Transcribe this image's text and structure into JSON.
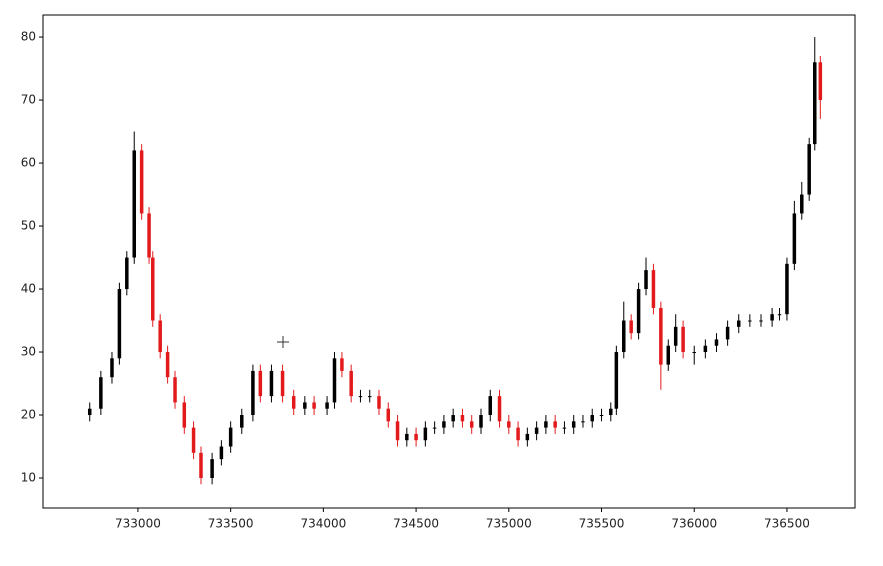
{
  "chart_data": {
    "type": "candlestick",
    "x": [
      732740,
      732800,
      732860,
      732900,
      732940,
      732980,
      733020,
      733060,
      733080,
      733120,
      733160,
      733200,
      733250,
      733300,
      733340,
      733400,
      733450,
      733500,
      733560,
      733620,
      733660,
      733720,
      733780,
      733840,
      733900,
      733950,
      734020,
      734060,
      734100,
      734150,
      734200,
      734250,
      734300,
      734350,
      734400,
      734450,
      734500,
      734550,
      734600,
      734650,
      734700,
      734750,
      734800,
      734850,
      734900,
      734950,
      735000,
      735050,
      735100,
      735150,
      735200,
      735250,
      735300,
      735350,
      735400,
      735450,
      735500,
      735550,
      735580,
      735620,
      735660,
      735700,
      735740,
      735780,
      735820,
      735860,
      735900,
      735940,
      736000,
      736060,
      736120,
      736180,
      736240,
      736300,
      736360,
      736420,
      736460,
      736500,
      736540,
      736580,
      736620,
      736650,
      736680
    ],
    "open": [
      20,
      21,
      26,
      29,
      40,
      45,
      62,
      52,
      45,
      35,
      30,
      26,
      22,
      18,
      14,
      10,
      13,
      15,
      18,
      20,
      27,
      23,
      27,
      23,
      21,
      22,
      21,
      22,
      29,
      27,
      23,
      23,
      23,
      21,
      19,
      16,
      17,
      16,
      18,
      18,
      19,
      20,
      19,
      18,
      20,
      23,
      19,
      18,
      16,
      17,
      18,
      19,
      18,
      18,
      19,
      19,
      20,
      20,
      21,
      30,
      35,
      33,
      40,
      43,
      37,
      28,
      31,
      34,
      30,
      30,
      31,
      32,
      34,
      35,
      35,
      35,
      36,
      36,
      44,
      52,
      55,
      63,
      76
    ],
    "high": [
      22,
      27,
      30,
      41,
      46,
      65,
      63,
      53,
      46,
      36,
      31,
      27,
      23,
      19,
      15,
      14,
      16,
      19,
      21,
      28,
      28,
      28,
      28,
      24,
      23,
      23,
      23,
      30,
      30,
      28,
      24,
      24,
      24,
      22,
      20,
      18,
      18,
      19,
      19,
      20,
      21,
      21,
      20,
      21,
      24,
      24,
      20,
      19,
      18,
      19,
      20,
      20,
      19,
      20,
      20,
      21,
      21,
      22,
      31,
      38,
      36,
      41,
      45,
      44,
      38,
      32,
      36,
      35,
      31,
      32,
      33,
      35,
      36,
      36,
      36,
      37,
      37,
      45,
      54,
      57,
      64,
      80,
      77
    ],
    "low": [
      19,
      20,
      25,
      28,
      39,
      44,
      51,
      44,
      34,
      29,
      25,
      21,
      17,
      13,
      9,
      9,
      12,
      14,
      17,
      19,
      22,
      22,
      22,
      20,
      20,
      20,
      20,
      21,
      26,
      22,
      22,
      22,
      20,
      18,
      15,
      15,
      15,
      15,
      17,
      17,
      18,
      18,
      17,
      17,
      19,
      18,
      17,
      15,
      15,
      16,
      17,
      17,
      17,
      17,
      18,
      18,
      19,
      19,
      20,
      29,
      32,
      32,
      39,
      36,
      24,
      27,
      30,
      29,
      28,
      29,
      30,
      31,
      33,
      34,
      34,
      34,
      35,
      35,
      43,
      51,
      54,
      62,
      67
    ],
    "close": [
      21,
      26,
      29,
      40,
      45,
      62,
      52,
      45,
      35,
      30,
      26,
      22,
      18,
      14,
      10,
      13,
      15,
      18,
      20,
      27,
      23,
      27,
      23,
      21,
      22,
      21,
      22,
      29,
      27,
      23,
      23,
      23,
      21,
      19,
      16,
      17,
      16,
      18,
      18,
      19,
      20,
      19,
      18,
      20,
      23,
      19,
      18,
      16,
      17,
      18,
      19,
      18,
      18,
      19,
      19,
      20,
      20,
      21,
      30,
      35,
      33,
      40,
      43,
      37,
      28,
      31,
      34,
      30,
      30,
      31,
      32,
      34,
      35,
      35,
      35,
      36,
      36,
      44,
      52,
      55,
      63,
      76,
      70
    ],
    "colorup": "#000000",
    "colordown": "#e31a1c",
    "xlim": [
      732488,
      736867
    ],
    "ylim": [
      5.24,
      83.5
    ],
    "xticks": [
      733000,
      733500,
      734000,
      734500,
      735000,
      735500,
      736000,
      736500
    ],
    "yticks": [
      10,
      20,
      30,
      40,
      50,
      60,
      70,
      80
    ]
  }
}
